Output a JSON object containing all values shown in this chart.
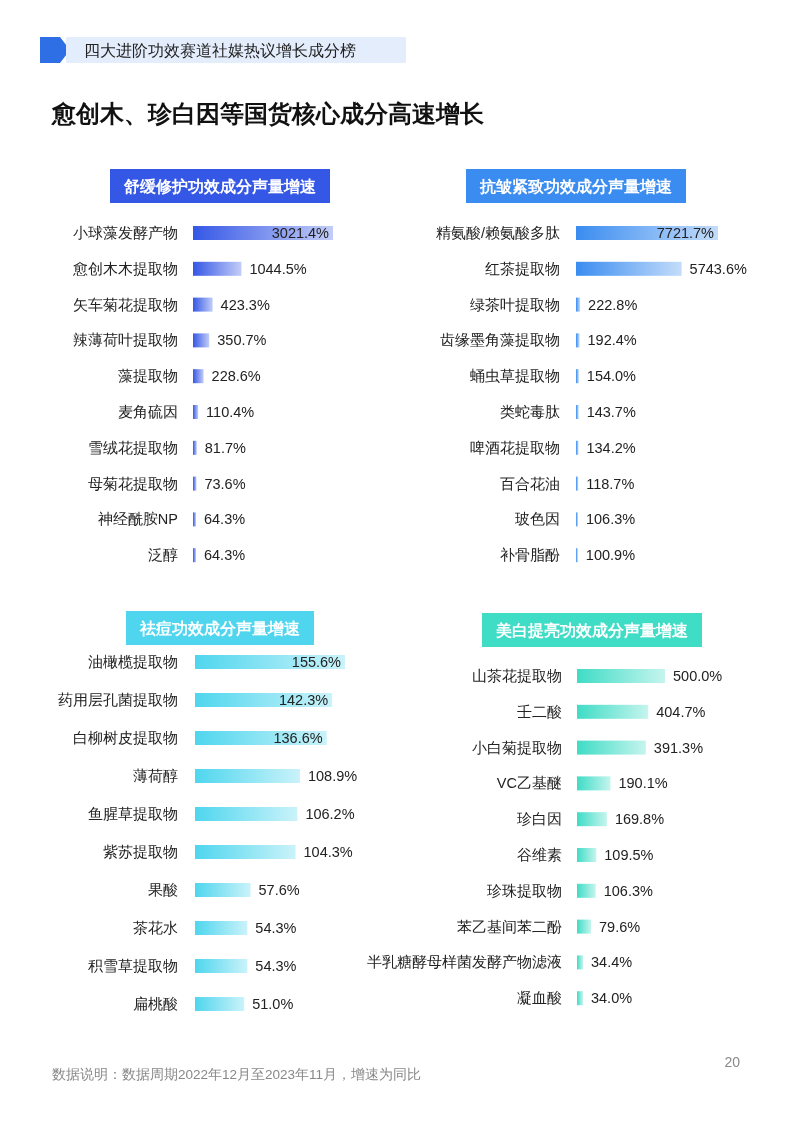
{
  "chart_data": [
    {
      "type": "other",
      "title": "四大进阶功效赛道社媒热议增长成分榜",
      "subtitle": "愈创木、珍白因等国货核心成分高速增长",
      "annotations": [
        "数据说明：数据周期2022年12月至2023年11月，增速为同比",
        "20"
      ]
    },
    {
      "type": "bar",
      "orientation": "horizontal",
      "title": "舒缓修护功效成分声量增速",
      "categories": [
        "小球藻发酵产物",
        "愈创木木提取物",
        "矢车菊花提取物",
        "辣薄荷叶提取物",
        "藻提取物",
        "麦角硫因",
        "雪绒花提取物",
        "母菊花提取物",
        "神经酰胺NP",
        "泛醇"
      ],
      "series": [
        {
          "color": "#3557e6",
          "values": [
            3021.4,
            1044.5,
            423.3,
            350.7,
            228.6,
            110.4,
            81.7,
            73.6,
            64.3,
            64.3
          ],
          "value_labels": [
            "3021.4%",
            "1044.5%",
            "423.3%",
            "350.7%",
            "228.6%",
            "110.4%",
            "81.7%",
            "73.6%",
            "64.3%",
            "64.3%"
          ]
        }
      ]
    },
    {
      "type": "bar",
      "orientation": "horizontal",
      "title": "抗皱紧致功效成分声量增速",
      "categories": [
        "精氨酸/赖氨酸多肽",
        "红茶提取物",
        "绿茶叶提取物",
        "齿缘墨角藻提取物",
        "蛹虫草提取物",
        "类蛇毒肽",
        "啤酒花提取物",
        "百合花油",
        "玻色因",
        "补骨脂酚"
      ],
      "series": [
        {
          "color": "#3a8cf0",
          "values": [
            7721.7,
            5743.6,
            222.8,
            192.4,
            154.0,
            143.7,
            134.2,
            118.7,
            106.3,
            100.9
          ],
          "value_labels": [
            "7721.7%",
            "5743.6%",
            "222.8%",
            "192.4%",
            "154.0%",
            "143.7%",
            "134.2%",
            "118.7%",
            "106.3%",
            "100.9%"
          ]
        }
      ]
    },
    {
      "type": "bar",
      "orientation": "horizontal",
      "title": "祛痘功效成分声量增速",
      "categories": [
        "油橄榄提取物",
        "药用层孔菌提取物",
        "白柳树皮提取物",
        "薄荷醇",
        "鱼腥草提取物",
        "紫苏提取物",
        "果酸",
        "茶花水",
        "积雪草提取物",
        "扁桃酸"
      ],
      "series": [
        {
          "color": "#4fd6ee",
          "values": [
            155.6,
            142.3,
            136.6,
            108.9,
            106.2,
            104.3,
            57.6,
            54.3,
            54.3,
            51.0
          ],
          "value_labels": [
            "155.6%",
            "142.3%",
            "136.6%",
            "108.9%",
            "106.2%",
            "104.3%",
            "57.6%",
            "54.3%",
            "54.3%",
            "51.0%"
          ]
        }
      ]
    },
    {
      "type": "bar",
      "orientation": "horizontal",
      "title": "美白提亮功效成分声量增速",
      "categories": [
        "山茶花提取物",
        "壬二酸",
        "小白菊提取物",
        "VC乙基醚",
        "珍白因",
        "谷维素",
        "珍珠提取物",
        "苯乙基间苯二酚",
        "半乳糖酵母样菌发酵产物滤液",
        "凝血酸"
      ],
      "series": [
        {
          "color": "#3fdcc6",
          "values": [
            500.0,
            404.7,
            391.3,
            190.1,
            169.8,
            109.5,
            106.3,
            79.6,
            34.4,
            34.0
          ],
          "value_labels": [
            "500.0%",
            "404.7%",
            "391.3%",
            "190.1%",
            "169.8%",
            "109.5%",
            "106.3%",
            "79.6%",
            "34.4%",
            "34.0%"
          ]
        }
      ]
    }
  ]
}
